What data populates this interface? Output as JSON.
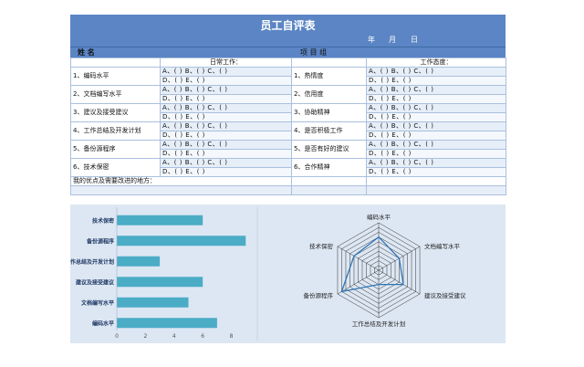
{
  "title": "员工自评表",
  "date": {
    "year": "年",
    "month": "月",
    "day": "日"
  },
  "name_label": "姓  名",
  "project_label": "项  目  组",
  "sections": {
    "left": "日常工作：",
    "right": "工作态度："
  },
  "options_line1": "A、(  )  B、(  )  C、(  )",
  "options_line2": "D、(  )  E、(  )",
  "left_items": [
    "1、编码水平",
    "2、文档编写水平",
    "3、建议及接受建议",
    "4、工作总结及开发计划",
    "5、备份源程序",
    "6、技术保密"
  ],
  "right_items": [
    "1、热情度",
    "2、信用度",
    "3、协助精神",
    "4、是否积极工作",
    "5、是否有好的建议",
    "6、合作精神"
  ],
  "advantages_label": "我的优点及需要改进的地方：",
  "chart_data": [
    {
      "type": "bar",
      "orientation": "horizontal",
      "categories": [
        "编码水平",
        "文档编写水平",
        "建议及接受建议",
        "工作总结及开发计划",
        "备份源程序",
        "技术保密"
      ],
      "categories_display": [
        "编码水平",
        "文档编写水平",
        "建议及接受建议",
        "作总结及开发计划",
        "备份源程序",
        "技术保密"
      ],
      "values": [
        7,
        5,
        6,
        3,
        9,
        6
      ],
      "xlim": [
        0,
        10
      ],
      "ticks": [
        "0",
        "2",
        "4",
        "6",
        "8"
      ],
      "color": "#4bacc6",
      "grid": false
    },
    {
      "type": "radar",
      "categories": [
        "编码水平",
        "文档编写水平",
        "建议及接受建议",
        "工作总结及开发计划",
        "备份源程序",
        "技术保密"
      ],
      "values": [
        7,
        5,
        6,
        3,
        9,
        6
      ],
      "rlim": [
        0,
        10
      ],
      "color": "#2e75b6"
    }
  ]
}
